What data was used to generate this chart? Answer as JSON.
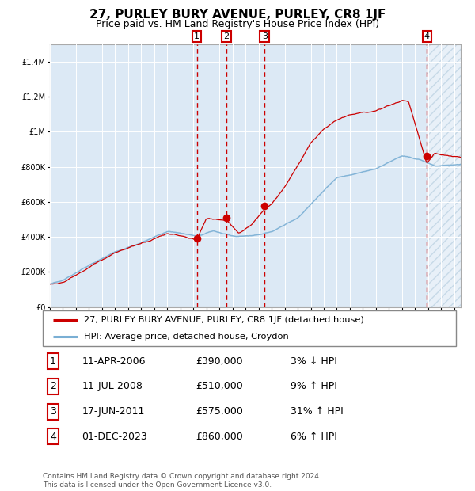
{
  "title": "27, PURLEY BURY AVENUE, PURLEY, CR8 1JF",
  "subtitle": "Price paid vs. HM Land Registry's House Price Index (HPI)",
  "ylim": [
    0,
    1500000
  ],
  "xlim_start": 1995.0,
  "xlim_end": 2026.5,
  "background_color": "#dce9f5",
  "hatch_color": "#b8cfe0",
  "grid_color": "#ffffff",
  "red_line_color": "#cc0000",
  "blue_line_color": "#7aafd4",
  "sale_marker_color": "#cc0000",
  "dashed_line_color": "#cc0000",
  "sale_points": [
    {
      "label": "1",
      "date_num": 2006.27,
      "price": 390000
    },
    {
      "label": "2",
      "date_num": 2008.53,
      "price": 510000
    },
    {
      "label": "3",
      "date_num": 2011.46,
      "price": 575000
    },
    {
      "label": "4",
      "date_num": 2023.92,
      "price": 860000
    }
  ],
  "legend_entry1": "27, PURLEY BURY AVENUE, PURLEY, CR8 1JF (detached house)",
  "legend_entry2": "HPI: Average price, detached house, Croydon",
  "table_rows": [
    {
      "num": "1",
      "date": "11-APR-2006",
      "price": "£390,000",
      "hpi": "3% ↓ HPI"
    },
    {
      "num": "2",
      "date": "11-JUL-2008",
      "price": "£510,000",
      "hpi": "9% ↑ HPI"
    },
    {
      "num": "3",
      "date": "17-JUN-2011",
      "price": "£575,000",
      "hpi": "31% ↑ HPI"
    },
    {
      "num": "4",
      "date": "01-DEC-2023",
      "price": "£860,000",
      "hpi": "6% ↑ HPI"
    }
  ],
  "footnote": "Contains HM Land Registry data © Crown copyright and database right 2024.\nThis data is licensed under the Open Government Licence v3.0.",
  "title_fontsize": 11,
  "subtitle_fontsize": 9,
  "tick_fontsize": 7,
  "hatch_start": 2023.92,
  "yticks": [
    0,
    200000,
    400000,
    600000,
    800000,
    1000000,
    1200000,
    1400000
  ],
  "ylabels": [
    "£0",
    "£200K",
    "£400K",
    "£600K",
    "£800K",
    "£1M",
    "£1.2M",
    "£1.4M"
  ]
}
